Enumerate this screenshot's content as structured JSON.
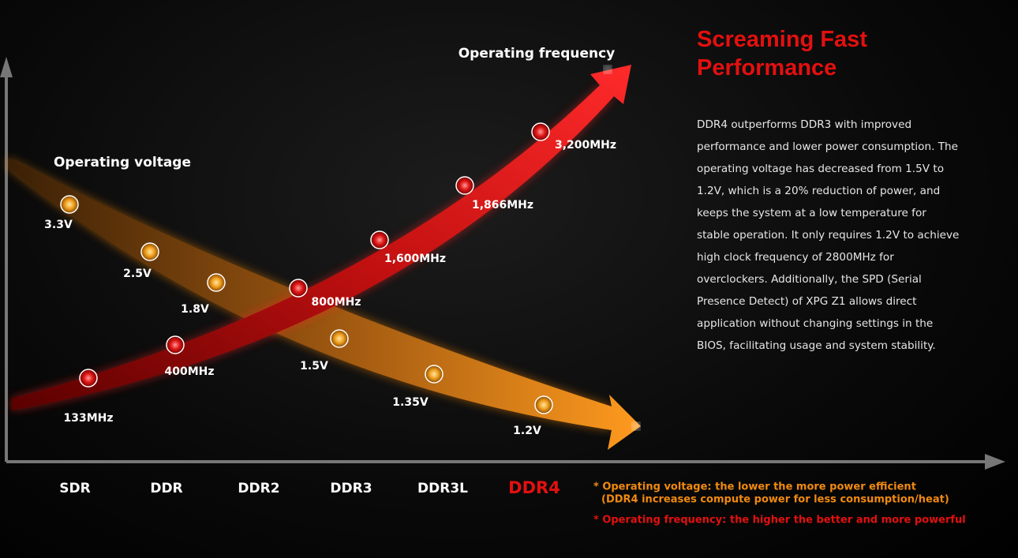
{
  "title_lines": [
    "Screaming Fast",
    "Performance"
  ],
  "description": "DDR4 outperforms DDR3 with improved performance and lower power consumption. The operating voltage has decreased from 1.5V to 1.2V, which is a 20% reduction of power, and keeps the system at a low temperature for stable operation. It only requires 1.2V to achieve high clock frequency of 2800MHz for overclockers. Additionally, the SPD (Serial Presence Detect) of XPG Z1 allows direct application without changing settings in the BIOS, facilitating usage and system stability.",
  "series": [
    {
      "name": "Operating voltage",
      "points": [
        "3.3V",
        "2.5V",
        "1.8V",
        "1.5V",
        "1.35V",
        "1.2V"
      ]
    },
    {
      "name": "Operating frequency",
      "points": [
        "133MHz",
        "400MHz",
        "800MHz",
        "1,600MHz",
        "1,866MHz",
        "3,200MHz"
      ]
    }
  ],
  "categories": [
    "SDR",
    "DDR",
    "DDR2",
    "DDR3",
    "DDR3L",
    "DDR4"
  ],
  "notes": [
    "* Operating voltage: the lower the more power efficient",
    "(DDR4 increases compute power for less consumption/heat)",
    "* Operating frequency: the higher the better and more powerful"
  ]
}
